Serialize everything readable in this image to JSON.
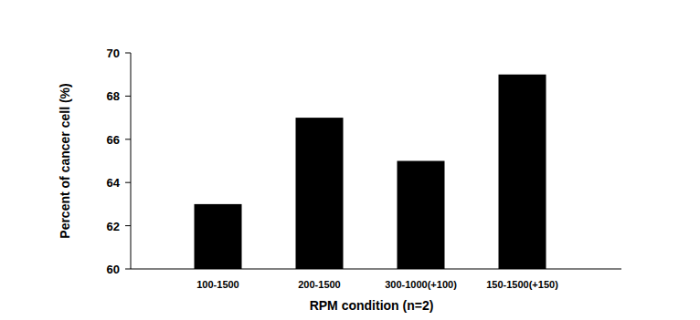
{
  "chart_data": {
    "type": "bar",
    "x_label": "RPM condition (n=2)",
    "y_label": "Percent of cancer cell (%)",
    "categories": [
      "100-1500",
      "200-1500",
      "300-1000(+100)",
      "150-1500(+150)"
    ],
    "values": [
      63,
      67,
      65,
      69
    ],
    "color": "#000000",
    "ylim": [
      60,
      70
    ],
    "yticks": [
      60,
      62,
      64,
      66,
      68,
      70
    ],
    "grid": false
  }
}
